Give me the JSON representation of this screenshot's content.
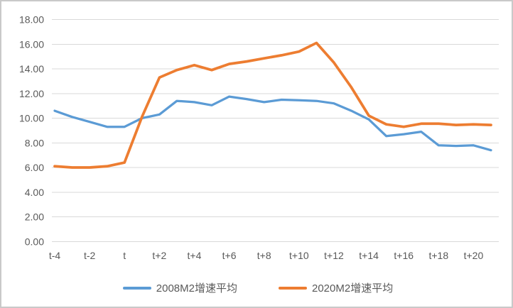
{
  "chart_data": {
    "type": "line",
    "title": "",
    "xlabel": "",
    "ylabel": "",
    "x_categories": [
      "t-4",
      "t-3",
      "t-2",
      "t-1",
      "t",
      "t+1",
      "t+2",
      "t+3",
      "t+4",
      "t+5",
      "t+6",
      "t+7",
      "t+8",
      "t+9",
      "t+10",
      "t+11",
      "t+12",
      "t+13",
      "t+14",
      "t+15",
      "t+16",
      "t+17",
      "t+18",
      "t+19",
      "t+20",
      "t+21"
    ],
    "x_tick_labels": [
      "t-4",
      "t-2",
      "t",
      "t+2",
      "t+4",
      "t+6",
      "t+8",
      "t+10",
      "t+12",
      "t+14",
      "t+16",
      "t+18",
      "t+20"
    ],
    "y_ticks": [
      "18.00",
      "16.00",
      "14.00",
      "12.00",
      "10.00",
      "8.00",
      "6.00",
      "4.00",
      "2.00",
      "0.00"
    ],
    "ylim": [
      0,
      18
    ],
    "grid": true,
    "legend_position": "bottom",
    "series": [
      {
        "name": "2008M2增速平均",
        "color": "#5B9BD5",
        "stroke_width": 3.25,
        "values": [
          10.6,
          10.1,
          9.7,
          9.3,
          9.3,
          10.0,
          10.3,
          11.4,
          11.3,
          11.05,
          11.75,
          11.55,
          11.3,
          11.5,
          11.45,
          11.4,
          11.2,
          10.6,
          9.9,
          8.55,
          8.7,
          8.9,
          7.8,
          7.75,
          7.8,
          7.4
        ]
      },
      {
        "name": "2020M2增速平均",
        "color": "#ED7D31",
        "stroke_width": 3.75,
        "values": [
          6.1,
          6.0,
          6.0,
          6.1,
          6.4,
          10.1,
          13.3,
          13.9,
          14.3,
          13.9,
          14.4,
          14.6,
          14.85,
          15.1,
          15.4,
          16.1,
          14.5,
          12.5,
          10.2,
          9.5,
          9.3,
          9.55,
          9.55,
          9.45,
          9.5,
          9.45
        ]
      }
    ],
    "colors": {
      "grid": "#D9D9D9",
      "tick_text": "#595959",
      "frame_border": "#C9C9C9",
      "background": "#FFFFFF"
    }
  }
}
